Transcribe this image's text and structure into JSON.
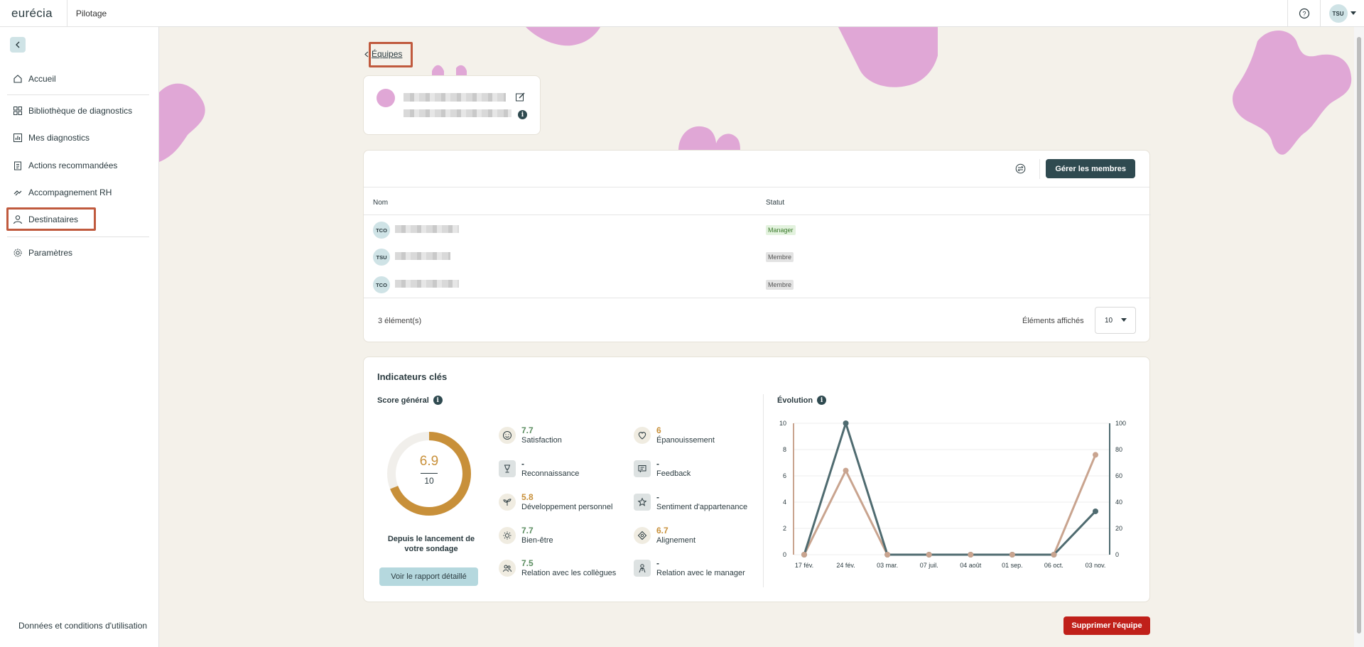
{
  "header": {
    "logo": "eurécia",
    "app_name": "Pilotage",
    "user_initials": "TSU"
  },
  "sidebar": {
    "items": [
      {
        "label": "Accueil",
        "icon": "home-icon"
      },
      {
        "label": "Bibliothèque de diagnostics",
        "icon": "grid-icon"
      },
      {
        "label": "Mes diagnostics",
        "icon": "bar-chart-icon"
      },
      {
        "label": "Actions recommandées",
        "icon": "clipboard-icon"
      },
      {
        "label": "Accompagnement RH",
        "icon": "handshake-icon"
      },
      {
        "label": "Destinataires",
        "icon": "user-icon"
      },
      {
        "label": "Paramètres",
        "icon": "gear-icon"
      }
    ],
    "footer_link": "Données et conditions d'utilisation"
  },
  "breadcrumb": {
    "label": "Équipes"
  },
  "members": {
    "manage_label": "Gérer les membres",
    "col_name": "Nom",
    "col_status": "Statut",
    "rows": [
      {
        "initials": "TCO",
        "status": "Manager"
      },
      {
        "initials": "TSU",
        "status": "Membre"
      },
      {
        "initials": "TCO",
        "status": "Membre"
      }
    ],
    "count": "3 élément(s)",
    "per_page_label": "Éléments affichés",
    "per_page_value": "10"
  },
  "kpi": {
    "title": "Indicateurs clés",
    "score_title": "Score général",
    "score": "6.9",
    "score_total": "10",
    "score_fraction": 0.69,
    "since": "Depuis le lancement de votre sondage",
    "report_button": "Voir le rapport détaillé",
    "indicators": [
      {
        "value": "7.7",
        "label": "Satisfaction",
        "tone": "green",
        "icon": "smile-icon"
      },
      {
        "value": "6",
        "label": "Épanouissement",
        "tone": "gold",
        "icon": "heart-icon"
      },
      {
        "value": "-",
        "label": "Reconnaissance",
        "tone": "dash",
        "icon": "trophy-icon"
      },
      {
        "value": "-",
        "label": "Feedback",
        "tone": "dash",
        "icon": "message-icon"
      },
      {
        "value": "5.8",
        "label": "Développement personnel",
        "tone": "gold",
        "icon": "sprout-icon"
      },
      {
        "value": "-",
        "label": "Sentiment d'appartenance",
        "tone": "dash",
        "icon": "star-icon"
      },
      {
        "value": "7.7",
        "label": "Bien-être",
        "tone": "green",
        "icon": "sun-icon"
      },
      {
        "value": "6.7",
        "label": "Alignement",
        "tone": "gold",
        "icon": "target-icon"
      },
      {
        "value": "7.5",
        "label": "Relation avec les collègues",
        "tone": "green",
        "icon": "people-icon"
      },
      {
        "value": "-",
        "label": "Relation avec le manager",
        "tone": "dash",
        "icon": "manager-icon"
      }
    ],
    "evolution_title": "Évolution"
  },
  "chart_data": {
    "type": "line",
    "title": "Évolution",
    "categories": [
      "17 févr.",
      "24 févr.",
      "03 mars",
      "07 juil.",
      "04 août",
      "01 sept.",
      "06 oct.",
      "03 nov."
    ],
    "category_labels": [
      "17 fév.",
      "24 fév.",
      "03 mar.",
      "07 juil.",
      "04 août",
      "01 sep.",
      "06 oct.",
      "03 nov."
    ],
    "y_left": {
      "ticks": [
        "0",
        "2",
        "4",
        "6",
        "8",
        "10"
      ],
      "ylim": [
        0,
        10
      ]
    },
    "y_right": {
      "ticks": [
        "0",
        "20",
        "40",
        "60",
        "80",
        "100"
      ],
      "ylim": [
        0,
        100
      ]
    },
    "series": [
      {
        "axis": "left",
        "color": "#4f6b70",
        "values": [
          0,
          10,
          0,
          0,
          0,
          0,
          0,
          3.3
        ]
      },
      {
        "axis": "left",
        "color": "#c9a48f",
        "values": [
          0,
          6.4,
          0,
          0,
          0,
          0,
          0,
          7.6
        ]
      }
    ],
    "grid": true
  },
  "delete_label": "Supprimer l'équipe",
  "colors": {
    "accent": "#2f4a50",
    "score": "#c8903a",
    "danger": "#c0201a",
    "blob": "#e0a7d6",
    "highlight": "#c05a3e"
  }
}
